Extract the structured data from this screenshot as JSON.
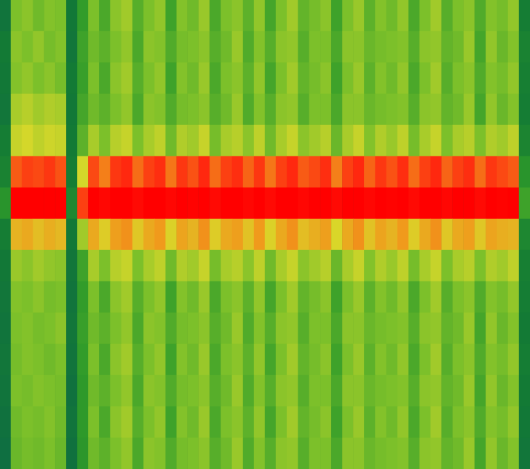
{
  "chart_data": {
    "type": "heatmap",
    "tick_labels": false,
    "zlim": [
      0,
      1
    ],
    "cells": [
      [
        0.22,
        0.5,
        0.52,
        0.48,
        0.51,
        0.5,
        0.24,
        0.38,
        0.5,
        0.42,
        0.52,
        0.55,
        0.44,
        0.5,
        0.53,
        0.4,
        0.51,
        0.48,
        0.54,
        0.42,
        0.5,
        0.52,
        0.45,
        0.53,
        0.41,
        0.5,
        0.55,
        0.46,
        0.49,
        0.52,
        0.4,
        0.5,
        0.54,
        0.45,
        0.51,
        0.48,
        0.53,
        0.42,
        0.5,
        0.55,
        0.44,
        0.5,
        0.52,
        0.43,
        0.51,
        0.49,
        0.53,
        0.26
      ],
      [
        0.25,
        0.52,
        0.5,
        0.53,
        0.49,
        0.51,
        0.23,
        0.4,
        0.48,
        0.45,
        0.5,
        0.53,
        0.42,
        0.52,
        0.51,
        0.43,
        0.49,
        0.5,
        0.52,
        0.44,
        0.48,
        0.54,
        0.43,
        0.51,
        0.44,
        0.52,
        0.53,
        0.44,
        0.5,
        0.5,
        0.42,
        0.52,
        0.52,
        0.47,
        0.49,
        0.5,
        0.51,
        0.44,
        0.52,
        0.53,
        0.46,
        0.48,
        0.54,
        0.41,
        0.53,
        0.47,
        0.51,
        0.28
      ],
      [
        0.24,
        0.51,
        0.53,
        0.5,
        0.52,
        0.49,
        0.25,
        0.39,
        0.5,
        0.42,
        0.52,
        0.55,
        0.44,
        0.5,
        0.53,
        0.4,
        0.51,
        0.48,
        0.54,
        0.42,
        0.5,
        0.52,
        0.45,
        0.53,
        0.41,
        0.5,
        0.55,
        0.46,
        0.49,
        0.52,
        0.4,
        0.5,
        0.54,
        0.45,
        0.51,
        0.48,
        0.53,
        0.42,
        0.5,
        0.55,
        0.44,
        0.5,
        0.52,
        0.43,
        0.51,
        0.49,
        0.53,
        0.27
      ],
      [
        0.23,
        0.56,
        0.58,
        0.55,
        0.57,
        0.56,
        0.24,
        0.41,
        0.48,
        0.45,
        0.5,
        0.53,
        0.42,
        0.52,
        0.51,
        0.43,
        0.49,
        0.5,
        0.52,
        0.44,
        0.48,
        0.54,
        0.43,
        0.51,
        0.44,
        0.52,
        0.53,
        0.44,
        0.5,
        0.5,
        0.42,
        0.52,
        0.52,
        0.47,
        0.49,
        0.5,
        0.51,
        0.44,
        0.52,
        0.53,
        0.46,
        0.48,
        0.54,
        0.41,
        0.53,
        0.47,
        0.51,
        0.26
      ],
      [
        0.26,
        0.6,
        0.62,
        0.59,
        0.61,
        0.6,
        0.25,
        0.45,
        0.56,
        0.5,
        0.58,
        0.6,
        0.5,
        0.56,
        0.59,
        0.48,
        0.57,
        0.55,
        0.6,
        0.49,
        0.56,
        0.58,
        0.52,
        0.59,
        0.48,
        0.56,
        0.6,
        0.52,
        0.55,
        0.58,
        0.47,
        0.56,
        0.6,
        0.51,
        0.57,
        0.54,
        0.59,
        0.49,
        0.56,
        0.6,
        0.5,
        0.56,
        0.58,
        0.5,
        0.57,
        0.55,
        0.59,
        0.29
      ],
      [
        0.28,
        0.82,
        0.85,
        0.84,
        0.86,
        0.83,
        0.26,
        0.62,
        0.84,
        0.78,
        0.86,
        0.88,
        0.8,
        0.85,
        0.87,
        0.79,
        0.86,
        0.83,
        0.88,
        0.8,
        0.85,
        0.87,
        0.81,
        0.86,
        0.79,
        0.85,
        0.88,
        0.82,
        0.84,
        0.87,
        0.78,
        0.85,
        0.88,
        0.81,
        0.86,
        0.83,
        0.87,
        0.8,
        0.85,
        0.88,
        0.81,
        0.85,
        0.87,
        0.8,
        0.86,
        0.84,
        0.82,
        0.35
      ],
      [
        0.35,
        1,
        1,
        1,
        1,
        1,
        0.3,
        0.85,
        1,
        0.98,
        1,
        1,
        0.97,
        1,
        1,
        0.98,
        1,
        0.99,
        1,
        0.97,
        1,
        1,
        0.98,
        1,
        0.97,
        1,
        1,
        0.98,
        1,
        1,
        0.97,
        1,
        1,
        0.98,
        1,
        0.99,
        1,
        0.97,
        1,
        1,
        0.98,
        1,
        1,
        0.97,
        1,
        0.99,
        1,
        0.4
      ],
      [
        0.26,
        0.7,
        0.72,
        0.68,
        0.71,
        0.69,
        0.24,
        0.55,
        0.72,
        0.65,
        0.74,
        0.76,
        0.66,
        0.72,
        0.75,
        0.64,
        0.73,
        0.7,
        0.76,
        0.65,
        0.72,
        0.74,
        0.67,
        0.75,
        0.64,
        0.72,
        0.76,
        0.68,
        0.71,
        0.74,
        0.63,
        0.72,
        0.76,
        0.67,
        0.73,
        0.7,
        0.75,
        0.65,
        0.72,
        0.76,
        0.66,
        0.72,
        0.74,
        0.66,
        0.73,
        0.71,
        0.7,
        0.3
      ],
      [
        0.24,
        0.54,
        0.52,
        0.55,
        0.53,
        0.52,
        0.23,
        0.4,
        0.56,
        0.5,
        0.58,
        0.6,
        0.5,
        0.56,
        0.59,
        0.48,
        0.57,
        0.55,
        0.6,
        0.49,
        0.56,
        0.58,
        0.52,
        0.59,
        0.48,
        0.56,
        0.6,
        0.52,
        0.55,
        0.58,
        0.47,
        0.56,
        0.6,
        0.51,
        0.57,
        0.54,
        0.59,
        0.49,
        0.56,
        0.6,
        0.5,
        0.56,
        0.58,
        0.5,
        0.57,
        0.55,
        0.59,
        0.27
      ],
      [
        0.23,
        0.51,
        0.5,
        0.52,
        0.49,
        0.5,
        0.22,
        0.38,
        0.5,
        0.42,
        0.52,
        0.55,
        0.44,
        0.5,
        0.53,
        0.4,
        0.51,
        0.48,
        0.54,
        0.42,
        0.5,
        0.52,
        0.45,
        0.53,
        0.41,
        0.5,
        0.55,
        0.46,
        0.49,
        0.52,
        0.4,
        0.5,
        0.54,
        0.45,
        0.51,
        0.48,
        0.53,
        0.42,
        0.5,
        0.55,
        0.44,
        0.5,
        0.52,
        0.43,
        0.51,
        0.49,
        0.53,
        0.26
      ],
      [
        0.22,
        0.5,
        0.51,
        0.49,
        0.5,
        0.52,
        0.23,
        0.39,
        0.48,
        0.45,
        0.5,
        0.53,
        0.42,
        0.52,
        0.51,
        0.43,
        0.49,
        0.5,
        0.52,
        0.44,
        0.48,
        0.54,
        0.43,
        0.51,
        0.44,
        0.52,
        0.53,
        0.44,
        0.5,
        0.5,
        0.42,
        0.52,
        0.52,
        0.47,
        0.49,
        0.5,
        0.51,
        0.44,
        0.52,
        0.53,
        0.46,
        0.48,
        0.54,
        0.41,
        0.53,
        0.47,
        0.51,
        0.25
      ],
      [
        0.23,
        0.49,
        0.51,
        0.5,
        0.48,
        0.5,
        0.22,
        0.38,
        0.5,
        0.42,
        0.52,
        0.55,
        0.44,
        0.5,
        0.53,
        0.4,
        0.51,
        0.48,
        0.54,
        0.42,
        0.5,
        0.52,
        0.45,
        0.53,
        0.41,
        0.5,
        0.55,
        0.46,
        0.49,
        0.52,
        0.4,
        0.5,
        0.54,
        0.45,
        0.51,
        0.48,
        0.53,
        0.42,
        0.5,
        0.55,
        0.44,
        0.5,
        0.52,
        0.43,
        0.51,
        0.49,
        0.53,
        0.26
      ],
      [
        0.22,
        0.5,
        0.49,
        0.51,
        0.5,
        0.49,
        0.21,
        0.37,
        0.48,
        0.45,
        0.5,
        0.53,
        0.42,
        0.52,
        0.51,
        0.43,
        0.49,
        0.5,
        0.52,
        0.44,
        0.48,
        0.54,
        0.43,
        0.51,
        0.44,
        0.52,
        0.53,
        0.44,
        0.5,
        0.5,
        0.42,
        0.52,
        0.52,
        0.47,
        0.49,
        0.5,
        0.51,
        0.44,
        0.52,
        0.53,
        0.46,
        0.48,
        0.54,
        0.41,
        0.53,
        0.47,
        0.51,
        0.25
      ],
      [
        0.21,
        0.48,
        0.5,
        0.49,
        0.51,
        0.48,
        0.22,
        0.37,
        0.5,
        0.42,
        0.52,
        0.55,
        0.44,
        0.5,
        0.53,
        0.4,
        0.51,
        0.48,
        0.54,
        0.42,
        0.5,
        0.52,
        0.45,
        0.53,
        0.41,
        0.5,
        0.55,
        0.46,
        0.49,
        0.52,
        0.4,
        0.5,
        0.54,
        0.45,
        0.51,
        0.48,
        0.53,
        0.42,
        0.5,
        0.55,
        0.44,
        0.5,
        0.52,
        0.43,
        0.51,
        0.49,
        0.53,
        0.24
      ],
      [
        0.2,
        0.47,
        0.49,
        0.48,
        0.5,
        0.47,
        0.21,
        0.36,
        0.48,
        0.45,
        0.5,
        0.53,
        0.42,
        0.52,
        0.51,
        0.43,
        0.49,
        0.5,
        0.52,
        0.44,
        0.48,
        0.54,
        0.43,
        0.51,
        0.44,
        0.52,
        0.53,
        0.44,
        0.5,
        0.5,
        0.42,
        0.52,
        0.52,
        0.47,
        0.49,
        0.5,
        0.51,
        0.44,
        0.52,
        0.53,
        0.46,
        0.48,
        0.54,
        0.41,
        0.53,
        0.47,
        0.51,
        0.23
      ]
    ]
  }
}
